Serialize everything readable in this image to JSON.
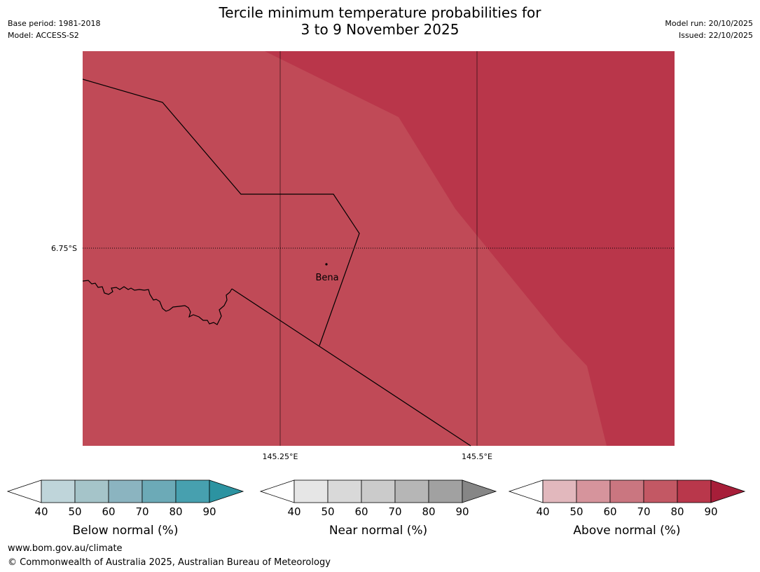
{
  "header": {
    "title_line1": "Tercile minimum temperature probabilities for",
    "title_line2": "3 to 9 November 2025",
    "base_period": "Base period: 1981-2018",
    "model": "Model: ACCESS-S2",
    "model_run": "Model run: 20/10/2025",
    "issued": "Issued: 22/10/2025"
  },
  "map": {
    "lat_label": "6.75°S",
    "lon_labels": [
      "145.25°E",
      "145.5°E"
    ],
    "place_label": "Bena",
    "colors": {
      "region_60_70": "#c04a57",
      "region_80_90": "#b9364a",
      "grid": "#000000",
      "border": "#000000"
    }
  },
  "legends": [
    {
      "label": "Below normal (%)",
      "ticks": [
        "40",
        "50",
        "60",
        "70",
        "80",
        "90"
      ],
      "colors": [
        "#ffffff",
        "#bfd5da",
        "#a5c4c9",
        "#8bb4c0",
        "#6caab7",
        "#47a0af",
        "#2c93a1"
      ]
    },
    {
      "label": "Near normal (%)",
      "ticks": [
        "40",
        "50",
        "60",
        "70",
        "80",
        "90"
      ],
      "colors": [
        "#ffffff",
        "#e6e6e6",
        "#d9d9d9",
        "#cbcbcb",
        "#b6b6b6",
        "#a1a1a1",
        "#868686"
      ]
    },
    {
      "label": "Above normal (%)",
      "ticks": [
        "40",
        "50",
        "60",
        "70",
        "80",
        "90"
      ],
      "colors": [
        "#ffffff",
        "#e2b8bd",
        "#d6949c",
        "#ca7680",
        "#c35864",
        "#b9374b",
        "#a71e39"
      ]
    }
  ],
  "footer": {
    "url": "www.bom.gov.au/climate",
    "copyright": "© Commonwealth of Australia 2025, Australian Bureau of Meteorology"
  }
}
